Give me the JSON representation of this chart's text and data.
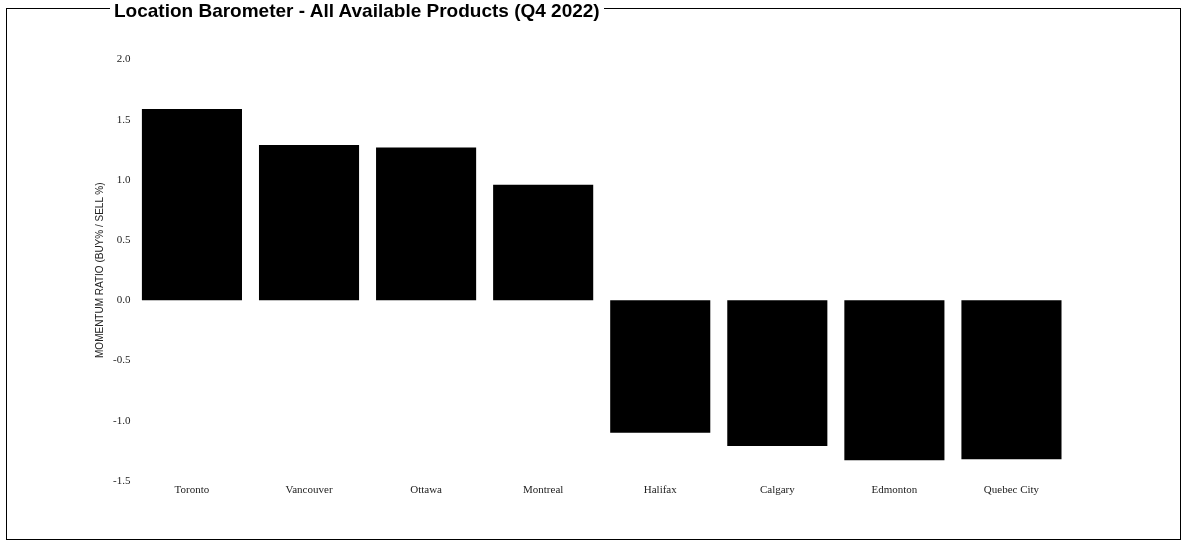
{
  "chart_data": {
    "type": "bar",
    "title": "Location Barometer - All Available Products (Q4 2022)",
    "ylabel": "MOMENTUM RATIO (BUY% / SELL %)",
    "categories": [
      "Toronto",
      "Vancouver",
      "Ottawa",
      "Montreal",
      "Halifax",
      "Calgary",
      "Edmonton",
      "Quebec City"
    ],
    "values": [
      1.59,
      1.29,
      1.27,
      0.96,
      -1.1,
      -1.21,
      -1.33,
      -1.32
    ],
    "color": "#000000",
    "ylim": [
      -1.5,
      2.0
    ],
    "yticks": [
      {
        "value": -1.5,
        "label": "-1.5"
      },
      {
        "value": -1.0,
        "label": "-1.0"
      },
      {
        "value": -0.5,
        "label": "-0.5"
      },
      {
        "value": 0,
        "label": "0.0"
      },
      {
        "value": 0.5,
        "label": "0.5"
      },
      {
        "value": 1.0,
        "label": "1.0"
      },
      {
        "value": 1.5,
        "label": "1.5"
      },
      {
        "value": 2.0,
        "label": "2.0"
      }
    ],
    "grid": false,
    "legend": false
  }
}
